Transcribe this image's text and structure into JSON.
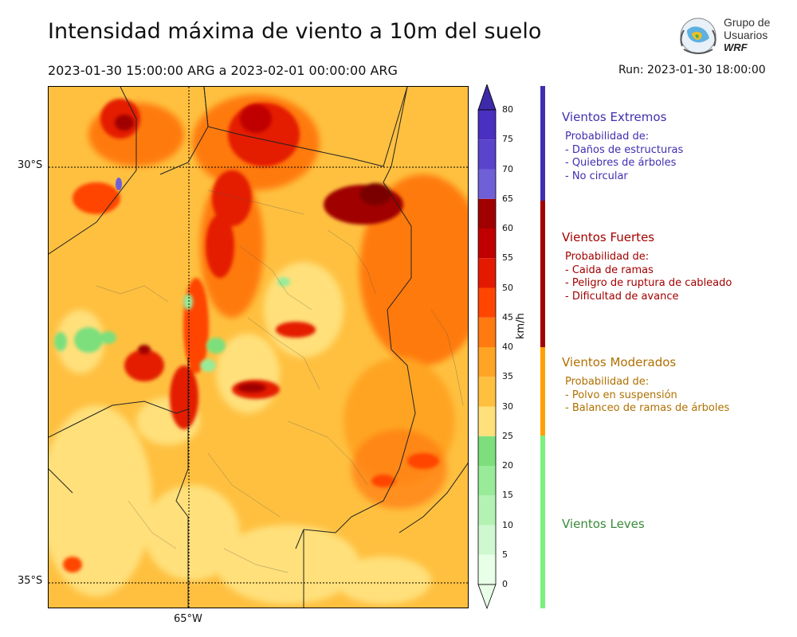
{
  "title": "Intensidad máxima de viento a 10m del suelo",
  "subtitle": "2023-01-30 15:00:00 ARG  a  2023-02-01 00:00:00 ARG",
  "run": "Run: 2023-01-30 18:00:00",
  "logo": {
    "line1": "Grupo de",
    "line2": "Usuarios",
    "line3": "WRF"
  },
  "axes": {
    "lat_labels": [
      "30°S",
      "35°S"
    ],
    "lon_labels": [
      "65°W"
    ]
  },
  "colorbar": {
    "unit": "km/h",
    "ticks": [
      "80",
      "75",
      "70",
      "65",
      "60",
      "55",
      "50",
      "45",
      "40",
      "35",
      "30",
      "25",
      "20",
      "15",
      "10",
      "5",
      "0"
    ],
    "colors": [
      "#e8ffe8",
      "#d0f8d0",
      "#b4f2b4",
      "#98eb98",
      "#7cdf7c",
      "#ffe07a",
      "#ffc040",
      "#ffa424",
      "#ff7a10",
      "#ff4500",
      "#e41a00",
      "#c00000",
      "#a00000",
      "#7060d8",
      "#5a44cc",
      "#4a30c0",
      "#3d2aa8"
    ]
  },
  "categories": [
    {
      "title": "Vientos Extremos",
      "color": "#3f2fb0",
      "desc": "Probabilidad de:\n- Daños de estructuras\n- Quiebres de árboles\n- No circular"
    },
    {
      "title": "Vientos Fuertes",
      "color": "#a30000",
      "desc": "Probabilidad de:\n- Caida de ramas\n- Peligro de ruptura de cableado\n- Dificultad de avance"
    },
    {
      "title": "Vientos Moderados",
      "color": "#b07000",
      "desc": "Probabilidad de:\n- Polvo en suspensión\n- Balanceo de ramas de árboles"
    },
    {
      "title": "Vientos Leves",
      "color": "#3a8a3a",
      "desc": ""
    }
  ]
}
